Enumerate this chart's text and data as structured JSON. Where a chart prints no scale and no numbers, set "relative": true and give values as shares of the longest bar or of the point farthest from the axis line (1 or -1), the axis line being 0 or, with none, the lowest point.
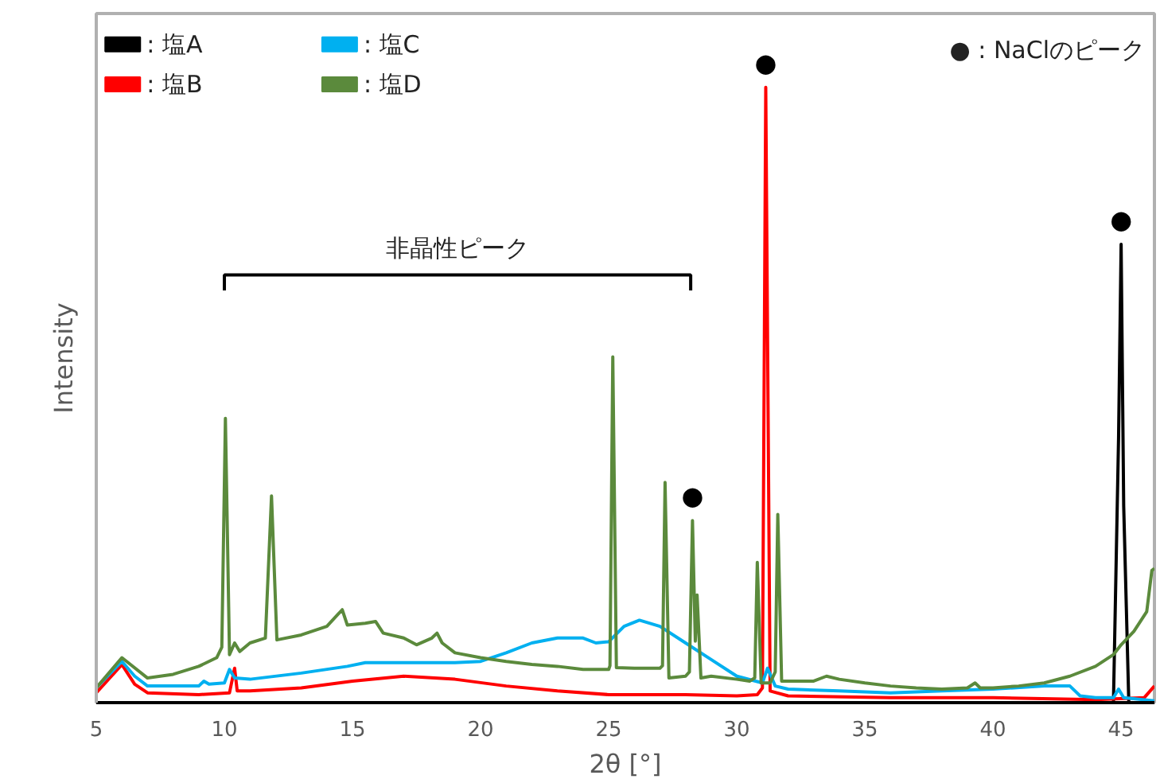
{
  "chart_data": {
    "type": "line",
    "relative": true,
    "xlabel": "2θ [°]",
    "ylabel": "Intensity",
    "xlim": [
      5,
      46.3
    ],
    "xticks": [
      5,
      10,
      15,
      20,
      25,
      30,
      35,
      40,
      45
    ],
    "grid": false,
    "legend": "top left",
    "line_style": "solid",
    "series": [
      {
        "name": ": 塩A",
        "color": "#000000",
        "x": [
          5,
          44.7,
          44.9,
          45.0,
          45.1,
          45.3,
          46.3
        ],
        "values": [
          0,
          0,
          0.43,
          0.745,
          0.32,
          0,
          0
        ]
      },
      {
        "name": ": 塩B",
        "color": "#ff0000",
        "x": [
          5,
          6,
          6.5,
          7,
          9,
          10.2,
          10.4,
          10.5,
          11,
          13,
          15,
          17,
          19,
          21,
          23,
          25,
          28,
          30,
          30.8,
          31.0,
          31.13,
          31.3,
          32,
          36,
          40,
          44,
          45.9,
          46.3
        ],
        "values": [
          0.016,
          0.062,
          0.03,
          0.016,
          0.013,
          0.016,
          0.056,
          0.019,
          0.019,
          0.024,
          0.035,
          0.043,
          0.038,
          0.027,
          0.019,
          0.013,
          0.013,
          0.011,
          0.013,
          0.024,
          1.0,
          0.019,
          0.011,
          0.008,
          0.008,
          0.005,
          0.008,
          0.027
        ]
      },
      {
        "name": ": 塩C",
        "color": "#00b0f0",
        "x": [
          5,
          6,
          6.5,
          7,
          9,
          9.2,
          9.4,
          10,
          10.2,
          10.4,
          11,
          13,
          14.8,
          15.5,
          17,
          19,
          20,
          21,
          22,
          23,
          24,
          24.5,
          25,
          25.6,
          26.2,
          27,
          28,
          29,
          30,
          31,
          31.2,
          31.5,
          32,
          34,
          36,
          38,
          40,
          42,
          43,
          43.4,
          44,
          44.7,
          44.9,
          45.1,
          46.3
        ],
        "values": [
          0.024,
          0.067,
          0.043,
          0.027,
          0.027,
          0.035,
          0.03,
          0.032,
          0.054,
          0.04,
          0.038,
          0.048,
          0.059,
          0.065,
          0.065,
          0.065,
          0.067,
          0.081,
          0.097,
          0.105,
          0.105,
          0.097,
          0.099,
          0.124,
          0.134,
          0.124,
          0.097,
          0.07,
          0.043,
          0.032,
          0.056,
          0.027,
          0.022,
          0.019,
          0.016,
          0.019,
          0.022,
          0.027,
          0.027,
          0.011,
          0.008,
          0.008,
          0.022,
          0.008,
          0.003
        ]
      },
      {
        "name": ": 塩D",
        "color": "#5b8a3c",
        "x": [
          5,
          6,
          7,
          8,
          9,
          9.7,
          9.9,
          10.04,
          10.2,
          10.4,
          10.6,
          11,
          11.6,
          11.84,
          12.05,
          13,
          14,
          14.4,
          14.6,
          14.8,
          15.5,
          15.9,
          16.2,
          17,
          17.5,
          18.1,
          18.3,
          18.5,
          19,
          20,
          21,
          22,
          23,
          24,
          25,
          25.05,
          25.16,
          25.3,
          26,
          27,
          27.1,
          27.2,
          27.35,
          28,
          28.15,
          28.27,
          28.38,
          28.45,
          28.6,
          29,
          30,
          30.5,
          30.7,
          30.8,
          30.95,
          31.3,
          31.5,
          31.6,
          31.75,
          32,
          33,
          33.5,
          34,
          35,
          36,
          37,
          38,
          39,
          39.3,
          39.5,
          40,
          41,
          42,
          43,
          44,
          44.7,
          45.0,
          45.5,
          46,
          46.2,
          46.3
        ],
        "values": [
          0.024,
          0.073,
          0.04,
          0.046,
          0.059,
          0.073,
          0.09,
          0.462,
          0.078,
          0.097,
          0.083,
          0.097,
          0.105,
          0.336,
          0.102,
          0.11,
          0.124,
          0.142,
          0.151,
          0.126,
          0.129,
          0.132,
          0.113,
          0.105,
          0.094,
          0.105,
          0.113,
          0.097,
          0.081,
          0.073,
          0.067,
          0.062,
          0.059,
          0.054,
          0.054,
          0.06,
          0.562,
          0.057,
          0.056,
          0.056,
          0.06,
          0.358,
          0.04,
          0.043,
          0.05,
          0.296,
          0.1,
          0.175,
          0.04,
          0.043,
          0.038,
          0.035,
          0.04,
          0.228,
          0.032,
          0.032,
          0.05,
          0.306,
          0.035,
          0.035,
          0.035,
          0.043,
          0.038,
          0.032,
          0.027,
          0.024,
          0.022,
          0.024,
          0.032,
          0.024,
          0.024,
          0.027,
          0.032,
          0.043,
          0.059,
          0.078,
          0.094,
          0.116,
          0.148,
          0.215,
          0.218
        ]
      }
    ],
    "annotations": [
      {
        "text": "●",
        "x": 28.27,
        "y": 0.296
      },
      {
        "text": "●",
        "x": 31.13,
        "y": 1.0
      },
      {
        "text": "●",
        "x": 45.0,
        "y": 0.745
      },
      "非晶性ピーク",
      "● : NaClのピーク"
    ]
  }
}
